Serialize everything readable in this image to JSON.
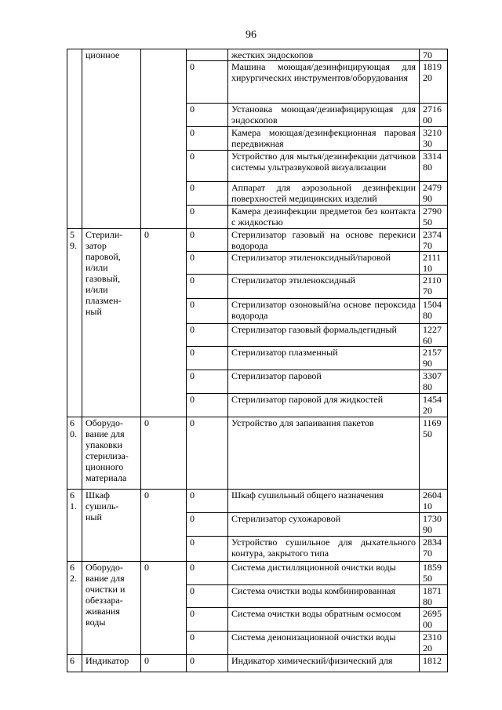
{
  "page_number": "96",
  "groups": [
    {
      "number": "",
      "name": "ционное",
      "col3": "",
      "items": [
        {
          "col4": "",
          "desc": "жестких эндоскопов",
          "code": "70"
        },
        {
          "col4": "0",
          "desc": "Машина моющая/дезинфицирующая для хирургических инструментов/оборудования",
          "code": "181920"
        },
        {
          "col4": "0",
          "desc": "Установка моющая/дезинфицирующая для эндоскопов",
          "code": "271600"
        },
        {
          "col4": "0",
          "desc": "Камера моющая/дезинфекционная паровая передвижная",
          "code": "321030"
        },
        {
          "col4": "0",
          "desc": "Устройство для мытья/дезинфекции датчиков системы ультразвуковой визуализации",
          "code": "331480"
        },
        {
          "col4": "0",
          "desc": "Аппарат для аэрозольной дезинфекции поверхностей медицинских изделий",
          "code": "247990"
        },
        {
          "col4": "0",
          "desc": "Камера дезинфекции предметов без контакта с жидкостью",
          "code": "279050"
        }
      ]
    },
    {
      "number": "59.",
      "name": "Стерили-\nзатор\nпаровой,\nи/или\nгазовый,\nи/или\nплазмен-\nный",
      "col3": "0",
      "items": [
        {
          "col4": "0",
          "desc": "Стерилизатор газовый на основе перекиси водорода",
          "code": "237470"
        },
        {
          "col4": "0",
          "desc": "Стерилизатор этиленоксидный/паровой",
          "code": "211110"
        },
        {
          "col4": "0",
          "desc": "Стерилизатор этиленоксидный",
          "code": "211070"
        },
        {
          "col4": "0",
          "desc": "Стерилизатор озоновый/на основе пероксида водорода",
          "code": "150480"
        },
        {
          "col4": "0",
          "desc": "Стерилизатор газовый формальдегидный",
          "code": "122760"
        },
        {
          "col4": "0",
          "desc": "Стерилизатор плазменный",
          "code": "215790"
        },
        {
          "col4": "0",
          "desc": "Стерилизатор паровой",
          "code": "330780"
        },
        {
          "col4": "0",
          "desc": "Стерилизатор паровой для жидкостей",
          "code": "145420"
        }
      ]
    },
    {
      "number": "60.",
      "name": "Оборудо-\nвание для\nупаковки\nстерилиза-\nционного\nматериала",
      "col3": "0",
      "items": [
        {
          "col4": "0",
          "desc": "Устройство для запаивания пакетов",
          "code": "116950"
        }
      ]
    },
    {
      "number": "61.",
      "name": "Шкаф\nсушиль-\nный",
      "col3": "0",
      "items": [
        {
          "col4": "0",
          "desc": "Шкаф сушильный общего назначения",
          "code": "260410"
        },
        {
          "col4": "0",
          "desc": "Стерилизатор сухожаровой",
          "code": "173090"
        },
        {
          "col4": "0",
          "desc": "Устройство сушильное для дыхательного контура, закрытого типа",
          "code": "283470"
        }
      ]
    },
    {
      "number": "62.",
      "name": "Оборудо-\nвание для\nочистки и\nобеззара-\nживания\nводы",
      "col3": "0",
      "items": [
        {
          "col4": "0",
          "desc": "Система дистилляционной очистки воды",
          "code": "185950"
        },
        {
          "col4": "0",
          "desc": "Система очистки воды комбинированная",
          "code": "187180"
        },
        {
          "col4": "0",
          "desc": "Система очистки воды обратным осмосом",
          "code": "269500"
        },
        {
          "col4": "0",
          "desc": "Система деионизационной очистки воды",
          "code": "231020"
        }
      ]
    },
    {
      "number": "6",
      "name": "Индикатор",
      "col3": "0",
      "items": [
        {
          "col4": "0",
          "desc": "Индикатор химический/физический для",
          "code": "1812"
        }
      ]
    }
  ]
}
